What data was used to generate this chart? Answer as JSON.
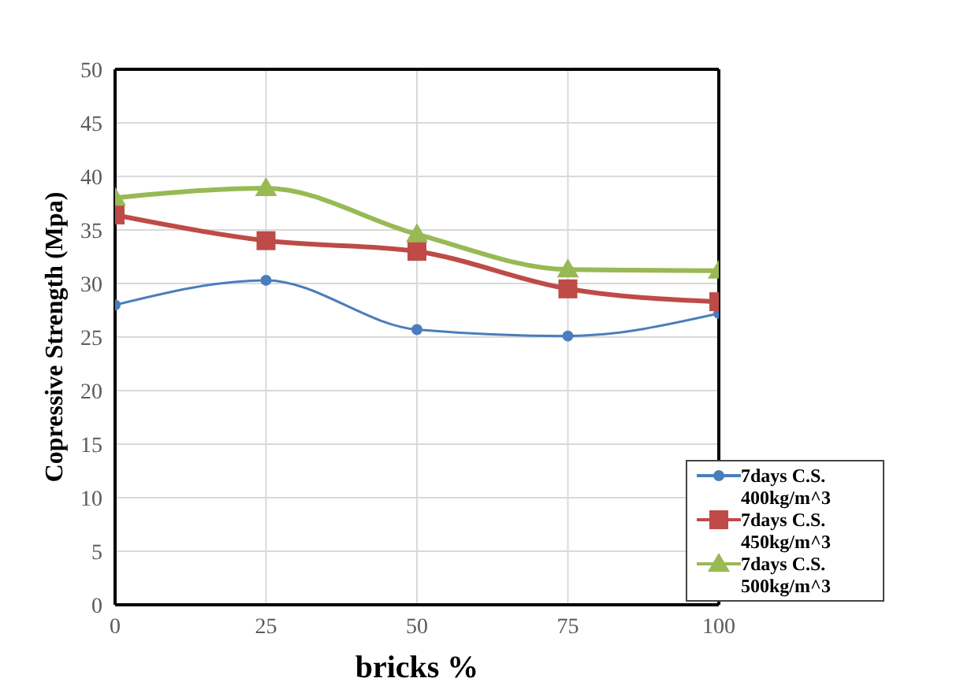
{
  "chart_data": {
    "type": "line",
    "xlabel": "bricks %",
    "ylabel": "Copressive Strength (Mpa)",
    "x": [
      0,
      25,
      50,
      75,
      100
    ],
    "xlim": [
      0,
      100
    ],
    "xticks": [
      0,
      25,
      50,
      75,
      100
    ],
    "ylim": [
      0,
      50
    ],
    "yticks": [
      0,
      5,
      10,
      15,
      20,
      25,
      30,
      35,
      40,
      45,
      50
    ],
    "grid": true,
    "legend": "bottom right",
    "line_style": "solid",
    "series": [
      {
        "name": "7days C.S. 400kg/m^3",
        "color": "#4a7ebb",
        "marker": "circle",
        "values": [
          28.0,
          30.3,
          25.7,
          25.1,
          27.2
        ]
      },
      {
        "name": "7days C.S. 450kg/m^3",
        "color": "#be4b48",
        "marker": "square",
        "values": [
          36.4,
          34.0,
          33.0,
          29.5,
          28.3
        ]
      },
      {
        "name": "7days C.S. 500kg/m^3",
        "color": "#98b954",
        "marker": "triangle",
        "values": [
          38.0,
          38.9,
          34.6,
          31.3,
          31.2
        ]
      }
    ]
  }
}
